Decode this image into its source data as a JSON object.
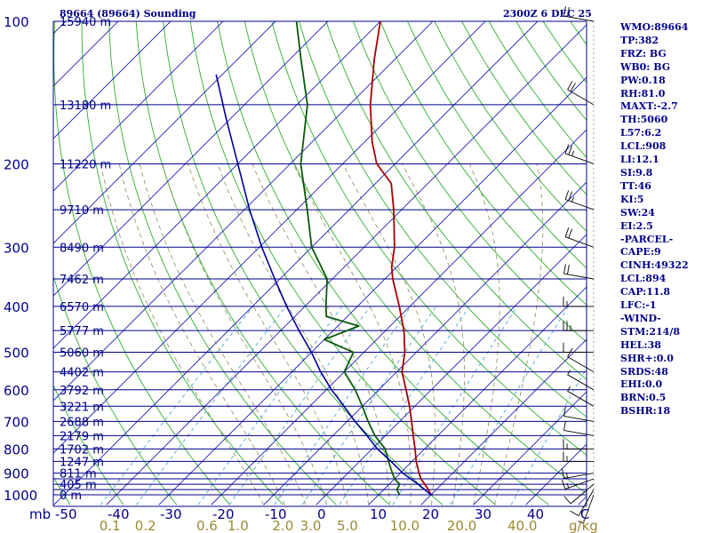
{
  "header": {
    "station": "89664 (89664) Sounding",
    "time": "2300Z  6 DEC 25"
  },
  "indices": [
    "WMO:89664",
    "TP:382",
    "FRZ: BG",
    "WB0: BG",
    "PW:0.18",
    "RH:81.0",
    "MAXT:-2.7",
    "TH:5060",
    "L57:6.2",
    "LCL:908",
    "LI:12.1",
    "SI:9.8",
    "TT:46",
    "KI:5",
    "SW:24",
    "EI:2.5",
    "-PARCEL-",
    "CAPE:9",
    "CINH:49322",
    "LCL:894",
    "CAP:11.8",
    "LFC:-1",
    "-WIND-",
    "STM:214/8",
    "HEL:38",
    "SHR+:0.0",
    "SRDS:48",
    "EHI:0.0",
    "BRN:0.5",
    "BSHR:18"
  ],
  "colors": {
    "isobar": "#00008b",
    "isotherm": "#1a1ab8",
    "dry_adiabat": "#2eae2e",
    "moist_adiabat": "#8b8b5a",
    "mixing_ratio": "#4aa6d8",
    "temperature": "#a80000",
    "dewpoint": "#0a5a0a",
    "parcel": "#0000a0",
    "text": "#00008b",
    "lower_labels": "#9a8a30"
  },
  "chart_data": {
    "type": "line",
    "title": "89664 (89664) Sounding",
    "xlabel": "C",
    "ylabel": "mb",
    "pressure_ticks": [
      {
        "p": 100,
        "label": "100"
      },
      {
        "p": 200,
        "label": "200"
      },
      {
        "p": 300,
        "label": "300"
      },
      {
        "p": 400,
        "label": "400"
      },
      {
        "p": 500,
        "label": "500"
      },
      {
        "p": 600,
        "label": "600"
      },
      {
        "p": 700,
        "label": "700"
      },
      {
        "p": 800,
        "label": "800"
      },
      {
        "p": 900,
        "label": "900"
      },
      {
        "p": 1000,
        "label": "1000"
      }
    ],
    "isobars": [
      100,
      150,
      200,
      250,
      300,
      350,
      400,
      450,
      500,
      550,
      600,
      650,
      700,
      750,
      800,
      850,
      900,
      925,
      950,
      975,
      1000
    ],
    "height_labels": [
      {
        "p": 100,
        "label": "15940 m"
      },
      {
        "p": 150,
        "label": "13180 m"
      },
      {
        "p": 200,
        "label": "11220 m"
      },
      {
        "p": 250,
        "label": "9710 m"
      },
      {
        "p": 300,
        "label": "8490 m"
      },
      {
        "p": 350,
        "label": "7462 m"
      },
      {
        "p": 400,
        "label": "6570 m"
      },
      {
        "p": 450,
        "label": "5777 m"
      },
      {
        "p": 500,
        "label": "5060 m"
      },
      {
        "p": 550,
        "label": "4402 m"
      },
      {
        "p": 600,
        "label": "3792 m"
      },
      {
        "p": 650,
        "label": "3221 m"
      },
      {
        "p": 700,
        "label": "2688 m"
      },
      {
        "p": 750,
        "label": "2179 m"
      },
      {
        "p": 800,
        "label": "1702 m"
      },
      {
        "p": 850,
        "label": "1247 m"
      },
      {
        "p": 900,
        "label": "811 m"
      },
      {
        "p": 950,
        "label": "405 m"
      },
      {
        "p": 1000,
        "label": "0 m"
      }
    ],
    "temp_ticks": [
      {
        "t": -50,
        "label": "-50"
      },
      {
        "t": -40,
        "label": "-40"
      },
      {
        "t": -30,
        "label": "-30"
      },
      {
        "t": -20,
        "label": "-20"
      },
      {
        "t": -10,
        "label": "-10"
      },
      {
        "t": 0,
        "label": "0"
      },
      {
        "t": 10,
        "label": "10"
      },
      {
        "t": 20,
        "label": "20"
      },
      {
        "t": 30,
        "label": "30"
      },
      {
        "t": 40,
        "label": "40"
      }
    ],
    "mixing_ratio_labels": [
      {
        "w": 0.1,
        "label": "0.1"
      },
      {
        "w": 0.2,
        "label": "0.2"
      },
      {
        "w": 0.6,
        "label": "0.6"
      },
      {
        "w": 1.0,
        "label": "1.0"
      },
      {
        "w": 2.0,
        "label": "2.0"
      },
      {
        "w": 3.0,
        "label": "3.0"
      },
      {
        "w": 5.0,
        "label": "5.0"
      },
      {
        "w": 10.0,
        "label": "10.0"
      },
      {
        "w": 20.0,
        "label": "20.0"
      },
      {
        "w": 40.0,
        "label": "40.0"
      }
    ],
    "mixing_ratio_unit": "g/kg",
    "ylim": [
      100,
      1025
    ],
    "xlim": [
      -50,
      50
    ],
    "series": [
      {
        "role": "temperature",
        "points": [
          {
            "p": 1000,
            "t": 20.0
          },
          {
            "p": 975,
            "t": 18.5
          },
          {
            "p": 950,
            "t": 16.8
          },
          {
            "p": 925,
            "t": 15.0
          },
          {
            "p": 900,
            "t": 13.6
          },
          {
            "p": 850,
            "t": 10.8
          },
          {
            "p": 800,
            "t": 8.2
          },
          {
            "p": 750,
            "t": 5.3
          },
          {
            "p": 700,
            "t": 2.3
          },
          {
            "p": 650,
            "t": -1.0
          },
          {
            "p": 600,
            "t": -4.8
          },
          {
            "p": 550,
            "t": -9.0
          },
          {
            "p": 500,
            "t": -12.2
          },
          {
            "p": 450,
            "t": -16.5
          },
          {
            "p": 400,
            "t": -22.0
          },
          {
            "p": 350,
            "t": -28.5
          },
          {
            "p": 330,
            "t": -31.0
          },
          {
            "p": 300,
            "t": -34.2
          },
          {
            "p": 250,
            "t": -41.5
          },
          {
            "p": 220,
            "t": -47.0
          },
          {
            "p": 200,
            "t": -53.5
          },
          {
            "p": 180,
            "t": -58.5
          },
          {
            "p": 150,
            "t": -66.0
          },
          {
            "p": 120,
            "t": -74.0
          },
          {
            "p": 100,
            "t": -80.0
          }
        ]
      },
      {
        "role": "dewpoint",
        "points": [
          {
            "p": 1000,
            "t": 14.0
          },
          {
            "p": 975,
            "t": 12.5
          },
          {
            "p": 950,
            "t": 12.0
          },
          {
            "p": 925,
            "t": 10.0
          },
          {
            "p": 900,
            "t": 8.5
          },
          {
            "p": 850,
            "t": 5.5
          },
          {
            "p": 800,
            "t": 2.5
          },
          {
            "p": 750,
            "t": -2.0
          },
          {
            "p": 700,
            "t": -6.0
          },
          {
            "p": 650,
            "t": -10.0
          },
          {
            "p": 600,
            "t": -14.5
          },
          {
            "p": 550,
            "t": -20.0
          },
          {
            "p": 500,
            "t": -22.0
          },
          {
            "p": 470,
            "t": -30.0
          },
          {
            "p": 440,
            "t": -26.0
          },
          {
            "p": 420,
            "t": -34.0
          },
          {
            "p": 400,
            "t": -36.0
          },
          {
            "p": 350,
            "t": -41.0
          },
          {
            "p": 300,
            "t": -50.0
          },
          {
            "p": 250,
            "t": -58.0
          },
          {
            "p": 200,
            "t": -68.0
          },
          {
            "p": 150,
            "t": -78.0
          },
          {
            "p": 120,
            "t": -88.0
          },
          {
            "p": 100,
            "t": -96.0
          }
        ]
      },
      {
        "role": "parcel",
        "points": [
          {
            "p": 1000,
            "t": 20.0
          },
          {
            "p": 950,
            "t": 15.5
          },
          {
            "p": 900,
            "t": 10.5
          },
          {
            "p": 850,
            "t": 6.0
          },
          {
            "p": 800,
            "t": 1.0
          },
          {
            "p": 750,
            "t": -3.5
          },
          {
            "p": 700,
            "t": -8.5
          },
          {
            "p": 650,
            "t": -13.5
          },
          {
            "p": 600,
            "t": -19.0
          },
          {
            "p": 550,
            "t": -24.5
          },
          {
            "p": 500,
            "t": -30.0
          },
          {
            "p": 450,
            "t": -36.5
          },
          {
            "p": 400,
            "t": -43.5
          },
          {
            "p": 350,
            "t": -51.0
          },
          {
            "p": 300,
            "t": -59.5
          },
          {
            "p": 250,
            "t": -69.0
          },
          {
            "p": 200,
            "t": -80.0
          },
          {
            "p": 160,
            "t": -91.0
          },
          {
            "p": 130,
            "t": -101.0
          }
        ]
      }
    ],
    "wind_barbs": [
      {
        "p": 1000,
        "dir": 200,
        "spd": 5
      },
      {
        "p": 975,
        "dir": 210,
        "spd": 10
      },
      {
        "p": 950,
        "dir": 230,
        "spd": 10
      },
      {
        "p": 925,
        "dir": 250,
        "spd": 15
      },
      {
        "p": 900,
        "dir": 260,
        "spd": 15
      },
      {
        "p": 850,
        "dir": 270,
        "spd": 15
      },
      {
        "p": 800,
        "dir": 270,
        "spd": 15
      },
      {
        "p": 750,
        "dir": 280,
        "spd": 10
      },
      {
        "p": 700,
        "dir": 280,
        "spd": 10
      },
      {
        "p": 650,
        "dir": 300,
        "spd": 5
      },
      {
        "p": 600,
        "dir": 300,
        "spd": 5
      },
      {
        "p": 550,
        "dir": 300,
        "spd": 10
      },
      {
        "p": 500,
        "dir": 270,
        "spd": 10
      },
      {
        "p": 450,
        "dir": 270,
        "spd": 25
      },
      {
        "p": 400,
        "dir": 270,
        "spd": 15
      },
      {
        "p": 350,
        "dir": 280,
        "spd": 20
      },
      {
        "p": 300,
        "dir": 290,
        "spd": 20
      },
      {
        "p": 250,
        "dir": 290,
        "spd": 25
      },
      {
        "p": 200,
        "dir": 290,
        "spd": 25
      },
      {
        "p": 150,
        "dir": 300,
        "spd": 20
      },
      {
        "p": 100,
        "dir": 280,
        "spd": 20
      }
    ]
  }
}
